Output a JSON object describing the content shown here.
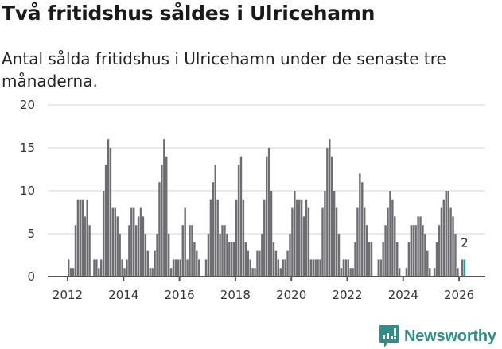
{
  "header": {
    "title": "Två fritidshus såldes i Ulricehamn",
    "subtitle": "Antal sålda fritidshus i Ulricehamn under de senaste tre månaderna."
  },
  "brand": {
    "name": "Newsworthy",
    "color": "#2f8f86"
  },
  "colors": {
    "bar": "#6e6d72",
    "highlight": "#1aa39a",
    "grid": "#e3e3e3",
    "axis": "#555555"
  },
  "chart_data": {
    "type": "bar",
    "title": "Två fritidshus såldes i Ulricehamn",
    "subtitle": "Antal sålda fritidshus i Ulricehamn under de senaste tre månaderna.",
    "xlabel": "",
    "ylabel": "",
    "ylim": [
      0,
      20
    ],
    "yticks": [
      0,
      5,
      10,
      15,
      20
    ],
    "xticks": [
      "2012",
      "2014",
      "2016",
      "2018",
      "2020",
      "2022",
      "2024",
      "2026"
    ],
    "grid": true,
    "legend": "none",
    "granularity": "monthly (rolling 3-month count)",
    "start": "2012-01",
    "values": [
      2,
      1,
      1,
      6,
      9,
      9,
      9,
      7,
      9,
      6,
      0,
      2,
      2,
      1,
      2,
      10,
      13,
      16,
      15,
      8,
      8,
      7,
      5,
      2,
      1,
      2,
      6,
      8,
      8,
      6,
      7,
      8,
      7,
      5,
      3,
      1,
      1,
      3,
      5,
      11,
      13,
      16,
      14,
      5,
      1,
      2,
      2,
      2,
      2,
      6,
      8,
      2,
      6,
      6,
      4,
      3,
      2,
      0,
      0,
      2,
      5,
      9,
      11,
      13,
      9,
      5,
      6,
      6,
      5,
      4,
      4,
      4,
      9,
      13,
      14,
      9,
      4,
      3,
      2,
      1,
      1,
      3,
      3,
      5,
      9,
      14,
      15,
      10,
      4,
      3,
      2,
      1,
      2,
      2,
      3,
      5,
      8,
      10,
      9,
      9,
      9,
      7,
      9,
      8,
      2,
      2,
      2,
      2,
      2,
      8,
      10,
      15,
      16,
      14,
      10,
      8,
      5,
      1,
      2,
      2,
      2,
      1,
      1,
      4,
      8,
      12,
      11,
      8,
      6,
      4,
      4,
      0,
      0,
      2,
      2,
      4,
      6,
      8,
      10,
      9,
      7,
      4,
      1,
      0,
      0,
      1,
      4,
      6,
      6,
      6,
      7,
      7,
      6,
      5,
      3,
      1,
      0,
      1,
      4,
      6,
      8,
      9,
      10,
      10,
      8,
      7,
      5,
      1,
      0,
      2,
      2
    ],
    "highlight": {
      "index": 170,
      "value": 2,
      "label": "2"
    }
  }
}
